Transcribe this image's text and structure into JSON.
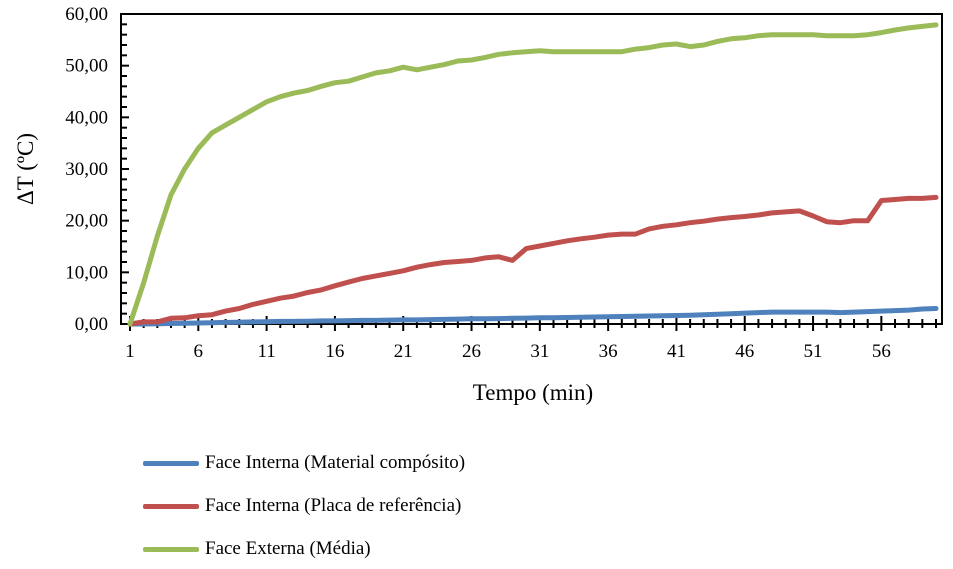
{
  "chart_data": {
    "type": "line",
    "title": "",
    "xlabel": "Tempo (min)",
    "ylabel": "ΔT (ºC)",
    "ylim": [
      0,
      60
    ],
    "yticks": [
      "0,00",
      "10,00",
      "20,00",
      "30,00",
      "40,00",
      "50,00",
      "60,00"
    ],
    "xtick_labels": [
      "1",
      "6",
      "11",
      "16",
      "21",
      "26",
      "31",
      "36",
      "41",
      "46",
      "51",
      "56"
    ],
    "x": [
      1,
      2,
      3,
      4,
      5,
      6,
      7,
      8,
      9,
      10,
      11,
      12,
      13,
      14,
      15,
      16,
      17,
      18,
      19,
      20,
      21,
      22,
      23,
      24,
      25,
      26,
      27,
      28,
      29,
      30,
      31,
      32,
      33,
      34,
      35,
      36,
      37,
      38,
      39,
      40,
      41,
      42,
      43,
      44,
      45,
      46,
      47,
      48,
      49,
      50,
      51,
      52,
      53,
      54,
      55,
      56,
      57,
      58,
      59,
      60
    ],
    "legend_position": "bottom",
    "series": [
      {
        "name": "Face Interna (Material compósito)",
        "color": "#4F81BD",
        "values": [
          0,
          0,
          0.05,
          0.1,
          0.15,
          0.2,
          0.25,
          0.3,
          0.35,
          0.4,
          0.45,
          0.5,
          0.5,
          0.55,
          0.6,
          0.6,
          0.65,
          0.7,
          0.7,
          0.75,
          0.8,
          0.8,
          0.85,
          0.9,
          0.95,
          1.0,
          1.0,
          1.05,
          1.1,
          1.15,
          1.2,
          1.2,
          1.25,
          1.3,
          1.35,
          1.4,
          1.45,
          1.5,
          1.55,
          1.6,
          1.65,
          1.7,
          1.8,
          1.9,
          2.0,
          2.1,
          2.2,
          2.3,
          2.3,
          2.3,
          2.3,
          2.3,
          2.2,
          2.3,
          2.4,
          2.5,
          2.6,
          2.7,
          2.9,
          3.0
        ]
      },
      {
        "name": "Face Interna (Placa de referência)",
        "color": "#C0504D",
        "values": [
          0,
          0.4,
          0.4,
          1.1,
          1.2,
          1.6,
          1.8,
          2.5,
          3,
          3.8,
          4.4,
          5,
          5.4,
          6.1,
          6.6,
          7.4,
          8.1,
          8.8,
          9.3,
          9.8,
          10.3,
          11,
          11.5,
          11.9,
          12.1,
          12.3,
          12.8,
          13,
          12.3,
          14.6,
          15.1,
          15.6,
          16.1,
          16.5,
          16.8,
          17.2,
          17.4,
          17.4,
          18.4,
          18.9,
          19.2,
          19.6,
          19.9,
          20.3,
          20.6,
          20.8,
          21.1,
          21.5,
          21.7,
          21.9,
          20.9,
          19.8,
          19.6,
          20,
          20,
          23.9,
          24.1,
          24.3,
          24.3,
          24.5
        ]
      },
      {
        "name": "Face Externa (Média)",
        "color": "#9BBB59",
        "values": [
          0,
          8,
          17,
          25,
          30,
          34,
          37,
          38.5,
          40,
          41.5,
          43,
          44,
          44.7,
          45.2,
          46,
          46.7,
          47,
          47.8,
          48.6,
          49,
          49.7,
          49.2,
          49.7,
          50.2,
          50.9,
          51.1,
          51.6,
          52.2,
          52.5,
          52.7,
          52.9,
          52.7,
          52.7,
          52.7,
          52.7,
          52.7,
          52.7,
          53.2,
          53.5,
          54,
          54.2,
          53.7,
          54,
          54.7,
          55.2,
          55.4,
          55.8,
          56,
          56,
          56,
          56,
          55.8,
          55.8,
          55.8,
          56,
          56.4,
          56.9,
          57.3,
          57.6,
          57.9
        ]
      }
    ]
  }
}
